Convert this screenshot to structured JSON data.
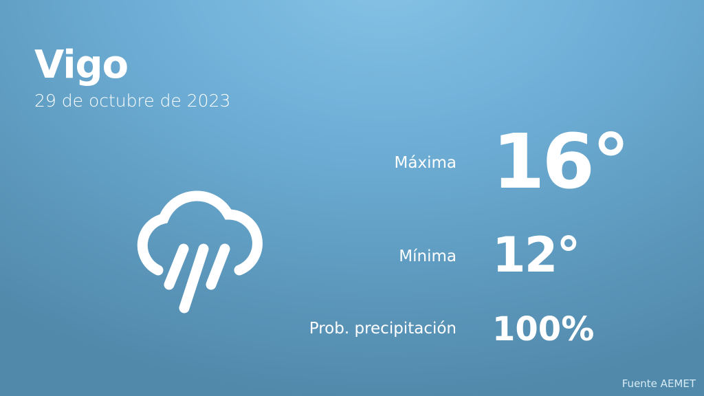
{
  "location": {
    "city": "Vigo",
    "date": "29 de octubre de 2023"
  },
  "forecast": {
    "max_label": "Máxima",
    "max_value": "16°",
    "min_label": "Mínima",
    "min_value": "12°",
    "precip_label": "Prob. precipitación",
    "precip_value": "100%"
  },
  "weather_icon": "cloud-rain-icon",
  "source": "Fuente AEMET",
  "colors": {
    "background_top": "#86c3e6",
    "background_bottom": "#5189ab",
    "text": "#ffffff"
  }
}
